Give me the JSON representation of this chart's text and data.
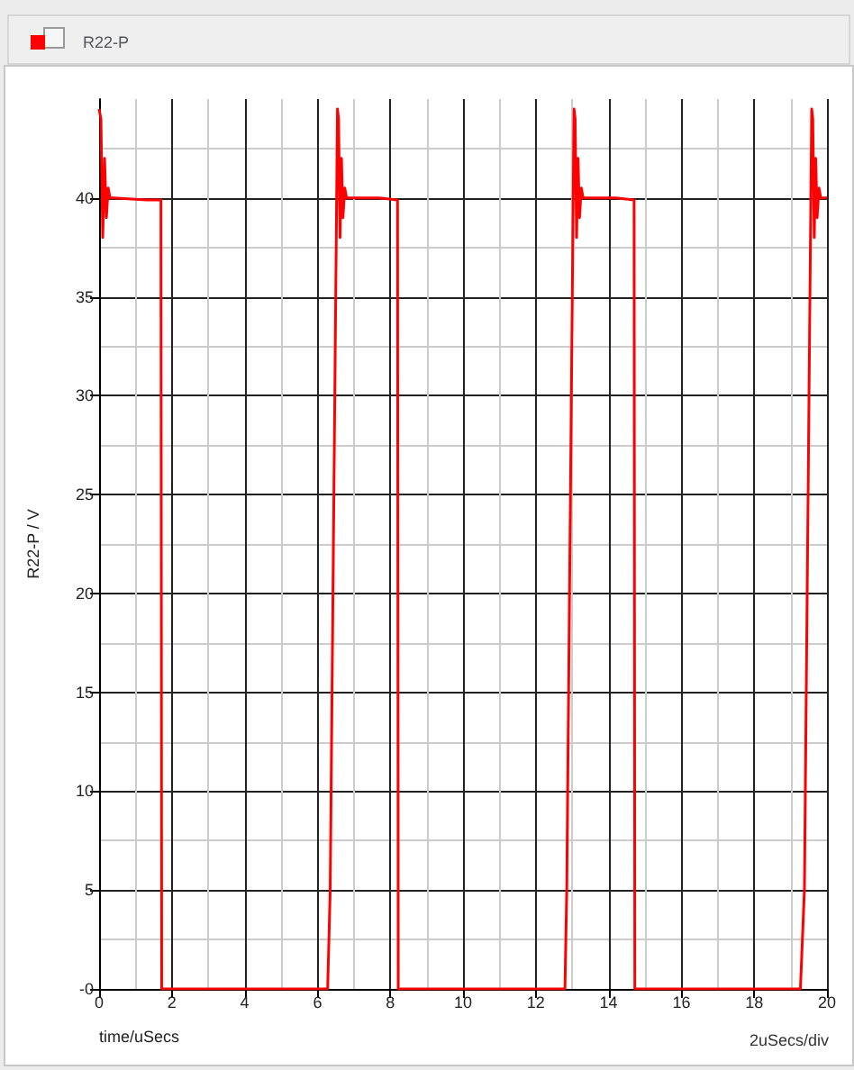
{
  "chart_data": {
    "type": "line",
    "xlabel": "time/uSecs",
    "ylabel": "R22-P / V",
    "annotations": [
      "2uSecs/div"
    ],
    "x": [
      0,
      0.05,
      0.1,
      0.15,
      0.2,
      0.25,
      0.3,
      0.4,
      1.3,
      1.7,
      1.72,
      1.75,
      6.28,
      6.35,
      6.55,
      6.58,
      6.62,
      6.66,
      6.7,
      6.75,
      6.8,
      7.7,
      8.2,
      8.22,
      8.25,
      12.8,
      12.85,
      13.05,
      13.08,
      13.12,
      13.16,
      13.2,
      13.25,
      13.3,
      14.2,
      14.7,
      14.72,
      14.75,
      19.27,
      19.38,
      19.58,
      19.61,
      19.65,
      19.69,
      19.73,
      19.78,
      19.83,
      20
    ],
    "series": [
      {
        "name": "R22-P",
        "color": "#ff0000",
        "values": [
          44.5,
          44,
          38,
          42,
          39,
          40.5,
          40,
          40,
          39.9,
          39.9,
          0,
          0,
          0,
          5,
          44.5,
          44,
          38,
          42,
          39,
          40.5,
          40,
          40,
          39.9,
          0,
          0,
          0,
          5,
          44.5,
          44,
          38,
          42,
          39,
          40.5,
          40,
          40,
          39.9,
          0,
          0,
          0,
          5,
          44.5,
          44,
          38,
          42,
          39,
          40.5,
          40,
          40
        ]
      }
    ],
    "xlim": [
      0,
      20
    ],
    "xticks": [
      0,
      2,
      4,
      6,
      8,
      10,
      12,
      14,
      16,
      18,
      20
    ],
    "ylim": [
      0,
      45
    ],
    "yticks": [
      {
        "value": 0,
        "label": "-0"
      },
      5,
      10,
      15,
      20,
      25,
      30,
      35,
      40
    ],
    "grid": true,
    "legend": "top left",
    "marker": "none",
    "line_style": "solid"
  }
}
